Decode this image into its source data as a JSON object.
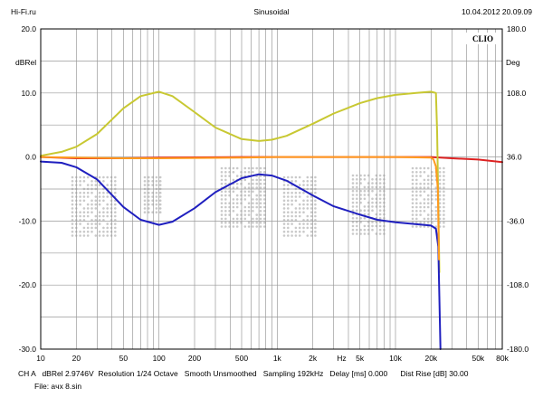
{
  "header": {
    "left": "Hi-Fi.ru",
    "center": "Sinusoidal",
    "right": "10.04.2012 20.09.09"
  },
  "brand": "CLIO",
  "footer": {
    "line1": "CH A   dBRel 2.9746V  Resolution 1/24 Octave   Smooth Unsmoothed   Sampling 192kHz   Delay [ms] 0.000      Dist Rise [dB] 30.00",
    "line2": "File: aчх 8.sin"
  },
  "colors": {
    "grid": "#9a9a9a",
    "blue": "#1f1fbf",
    "yellow": "#c8c832",
    "orange": "#ff9a1f",
    "red": "#dd2222",
    "watermark": "#c9c9c9"
  },
  "chart_data": {
    "type": "line",
    "x_scale": "log",
    "xlim": [
      10,
      80000
    ],
    "x_ticks": [
      10,
      20,
      50,
      100,
      200,
      500,
      1000,
      2000,
      5000,
      10000,
      20000,
      50000,
      80000
    ],
    "x_tick_labels": [
      "10",
      "20",
      "50",
      "100",
      "200",
      "500",
      "1k",
      "2k",
      "Hz",
      "5k",
      "10k",
      "20k",
      "50k",
      "80k"
    ],
    "x_tick_label_values": [
      10,
      20,
      50,
      100,
      200,
      500,
      1000,
      2000,
      3500,
      5000,
      10000,
      20000,
      50000,
      80000
    ],
    "ylabel_left": "dBRel",
    "ylim_left": [
      -30,
      20
    ],
    "y_ticks_left": [
      "20.0",
      "10.0",
      "0.0",
      "-10.0",
      "-20.0",
      "-30.0"
    ],
    "ylabel_right": "Deg",
    "ylim_right": [
      -180,
      180
    ],
    "y_ticks_right": [
      "180.0",
      "108.0",
      "36.0",
      "-36.0",
      "-108.0",
      "-180.0"
    ],
    "grid": true,
    "series": [
      {
        "color": "blue",
        "axis": "left",
        "x": [
          10,
          15,
          20,
          30,
          50,
          70,
          100,
          130,
          200,
          300,
          500,
          700,
          900,
          1200,
          2000,
          3000,
          5000,
          7000,
          10000,
          15000,
          20000,
          22000,
          23000,
          23500,
          24000
        ],
        "y": [
          -0.7,
          -0.9,
          -1.6,
          -3.5,
          -7.8,
          -9.8,
          -10.6,
          -10.1,
          -8.0,
          -5.5,
          -3.3,
          -2.7,
          -2.9,
          -3.7,
          -6.0,
          -7.7,
          -9.0,
          -9.8,
          -10.2,
          -10.5,
          -10.7,
          -11.2,
          -14,
          -22,
          -30
        ]
      },
      {
        "color": "yellow",
        "axis": "left",
        "x": [
          10,
          15,
          20,
          30,
          50,
          70,
          100,
          130,
          200,
          300,
          500,
          700,
          900,
          1200,
          2000,
          3000,
          5000,
          7000,
          10000,
          15000,
          20000,
          22000,
          22500,
          23000,
          23500
        ],
        "y": [
          0.2,
          0.8,
          1.6,
          3.6,
          7.6,
          9.5,
          10.2,
          9.5,
          7.0,
          4.6,
          2.8,
          2.5,
          2.7,
          3.3,
          5.2,
          6.8,
          8.4,
          9.2,
          9.7,
          10.0,
          10.2,
          10.0,
          4,
          -7,
          -18
        ]
      },
      {
        "color": "orange",
        "axis": "left",
        "x": [
          10,
          20,
          50,
          100,
          500,
          1000,
          5000,
          10000,
          20000,
          21000,
          22000,
          22800,
          23300
        ],
        "y": [
          0.0,
          -0.1,
          -0.2,
          -0.2,
          -0.1,
          0.0,
          0.0,
          0.0,
          -0.1,
          -0.4,
          -1.5,
          -5,
          -16
        ]
      },
      {
        "color": "red",
        "axis": "left",
        "x": [
          10,
          20,
          50,
          100,
          500,
          1000,
          5000,
          10000,
          20000,
          30000,
          50000,
          80000
        ],
        "y": [
          0.0,
          -0.2,
          -0.2,
          -0.1,
          0.0,
          0.0,
          0.0,
          0.0,
          0.0,
          -0.2,
          -0.4,
          -0.8
        ]
      }
    ]
  }
}
